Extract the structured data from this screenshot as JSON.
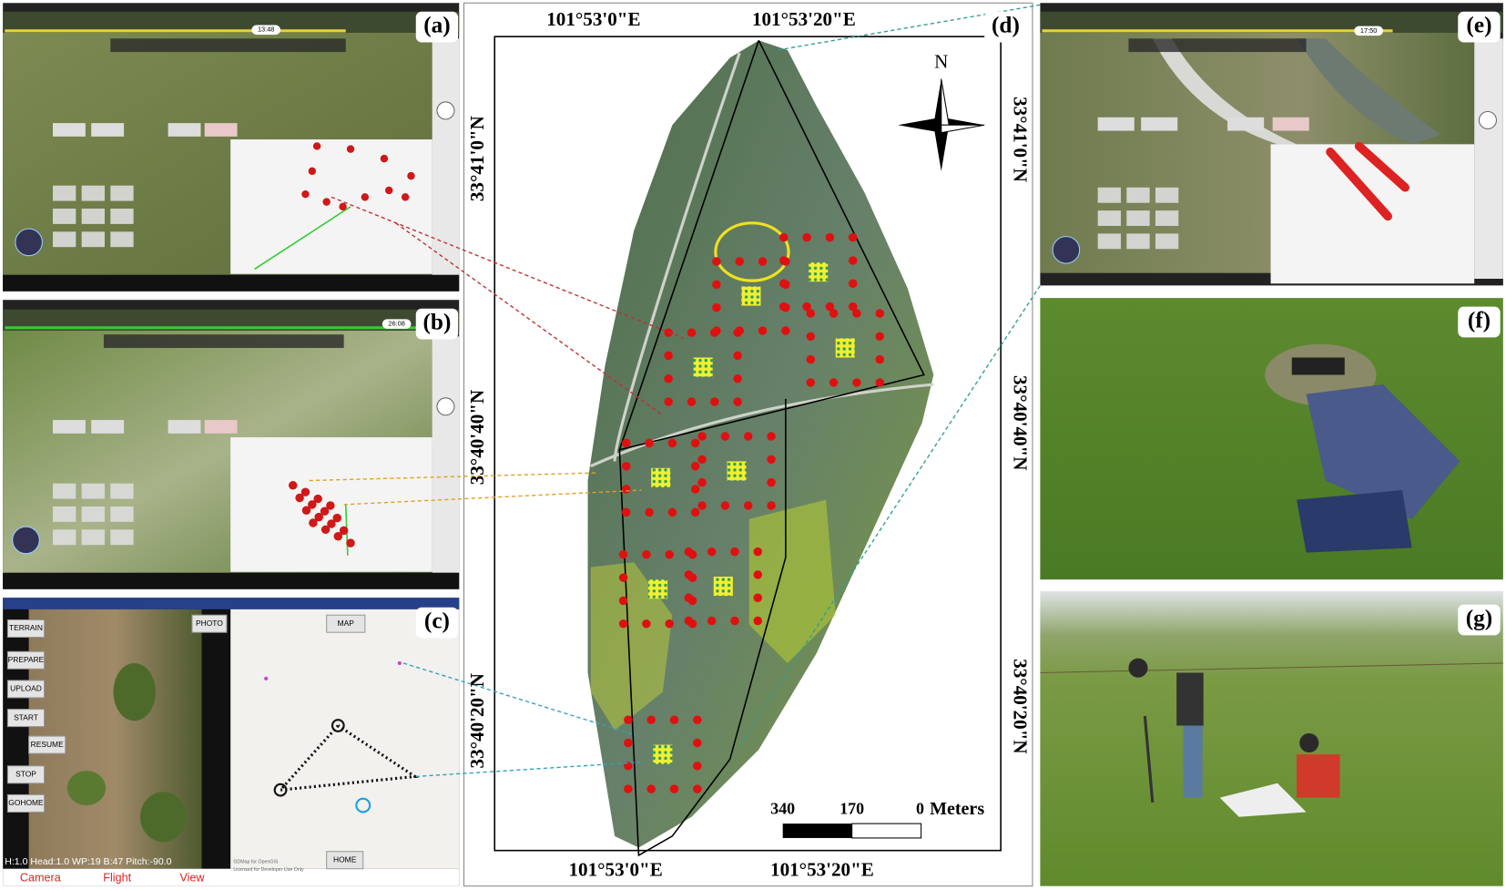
{
  "panel_labels": [
    "(a)",
    "(b)",
    "(c)",
    "(d)",
    "(e)",
    "(f)",
    "(g)"
  ],
  "panel_a": {
    "time": "13:48"
  },
  "panel_b": {
    "time": "26:08"
  },
  "panel_e": {
    "time": "17:50"
  },
  "panel_c": {
    "buttons": [
      "TERRAIN",
      "PREPARE",
      "UPLOAD",
      "START",
      "RESUME",
      "STOP",
      "GOHOME"
    ],
    "photo_button": "PHOTO",
    "map_button": "MAP",
    "home_button": "HOME",
    "status": "H:1.0 Head:1.0 WP:19 B:47 Pitch:-90.0",
    "tabs": [
      "Camera",
      "Flight",
      "View"
    ],
    "credits": [
      "GDMap for OpenGIS",
      "Licensed for Developer Use Only"
    ]
  },
  "map": {
    "top_longitudes": [
      "101°53'0\"E",
      "101°53'20\"E"
    ],
    "bottom_longitudes": [
      "101°53'0\"E",
      "101°53'20\"E"
    ],
    "left_latitudes": [
      "33°41'0\"N",
      "33°40'40\"N",
      "33°40'20\"N"
    ],
    "right_latitudes": [
      "33°41'0\"N",
      "33°40'40\"N",
      "33°40'20\"N"
    ],
    "north": "N",
    "scale_bar": {
      "labels": [
        "340",
        "170",
        "0"
      ],
      "unit": "Meters"
    }
  }
}
